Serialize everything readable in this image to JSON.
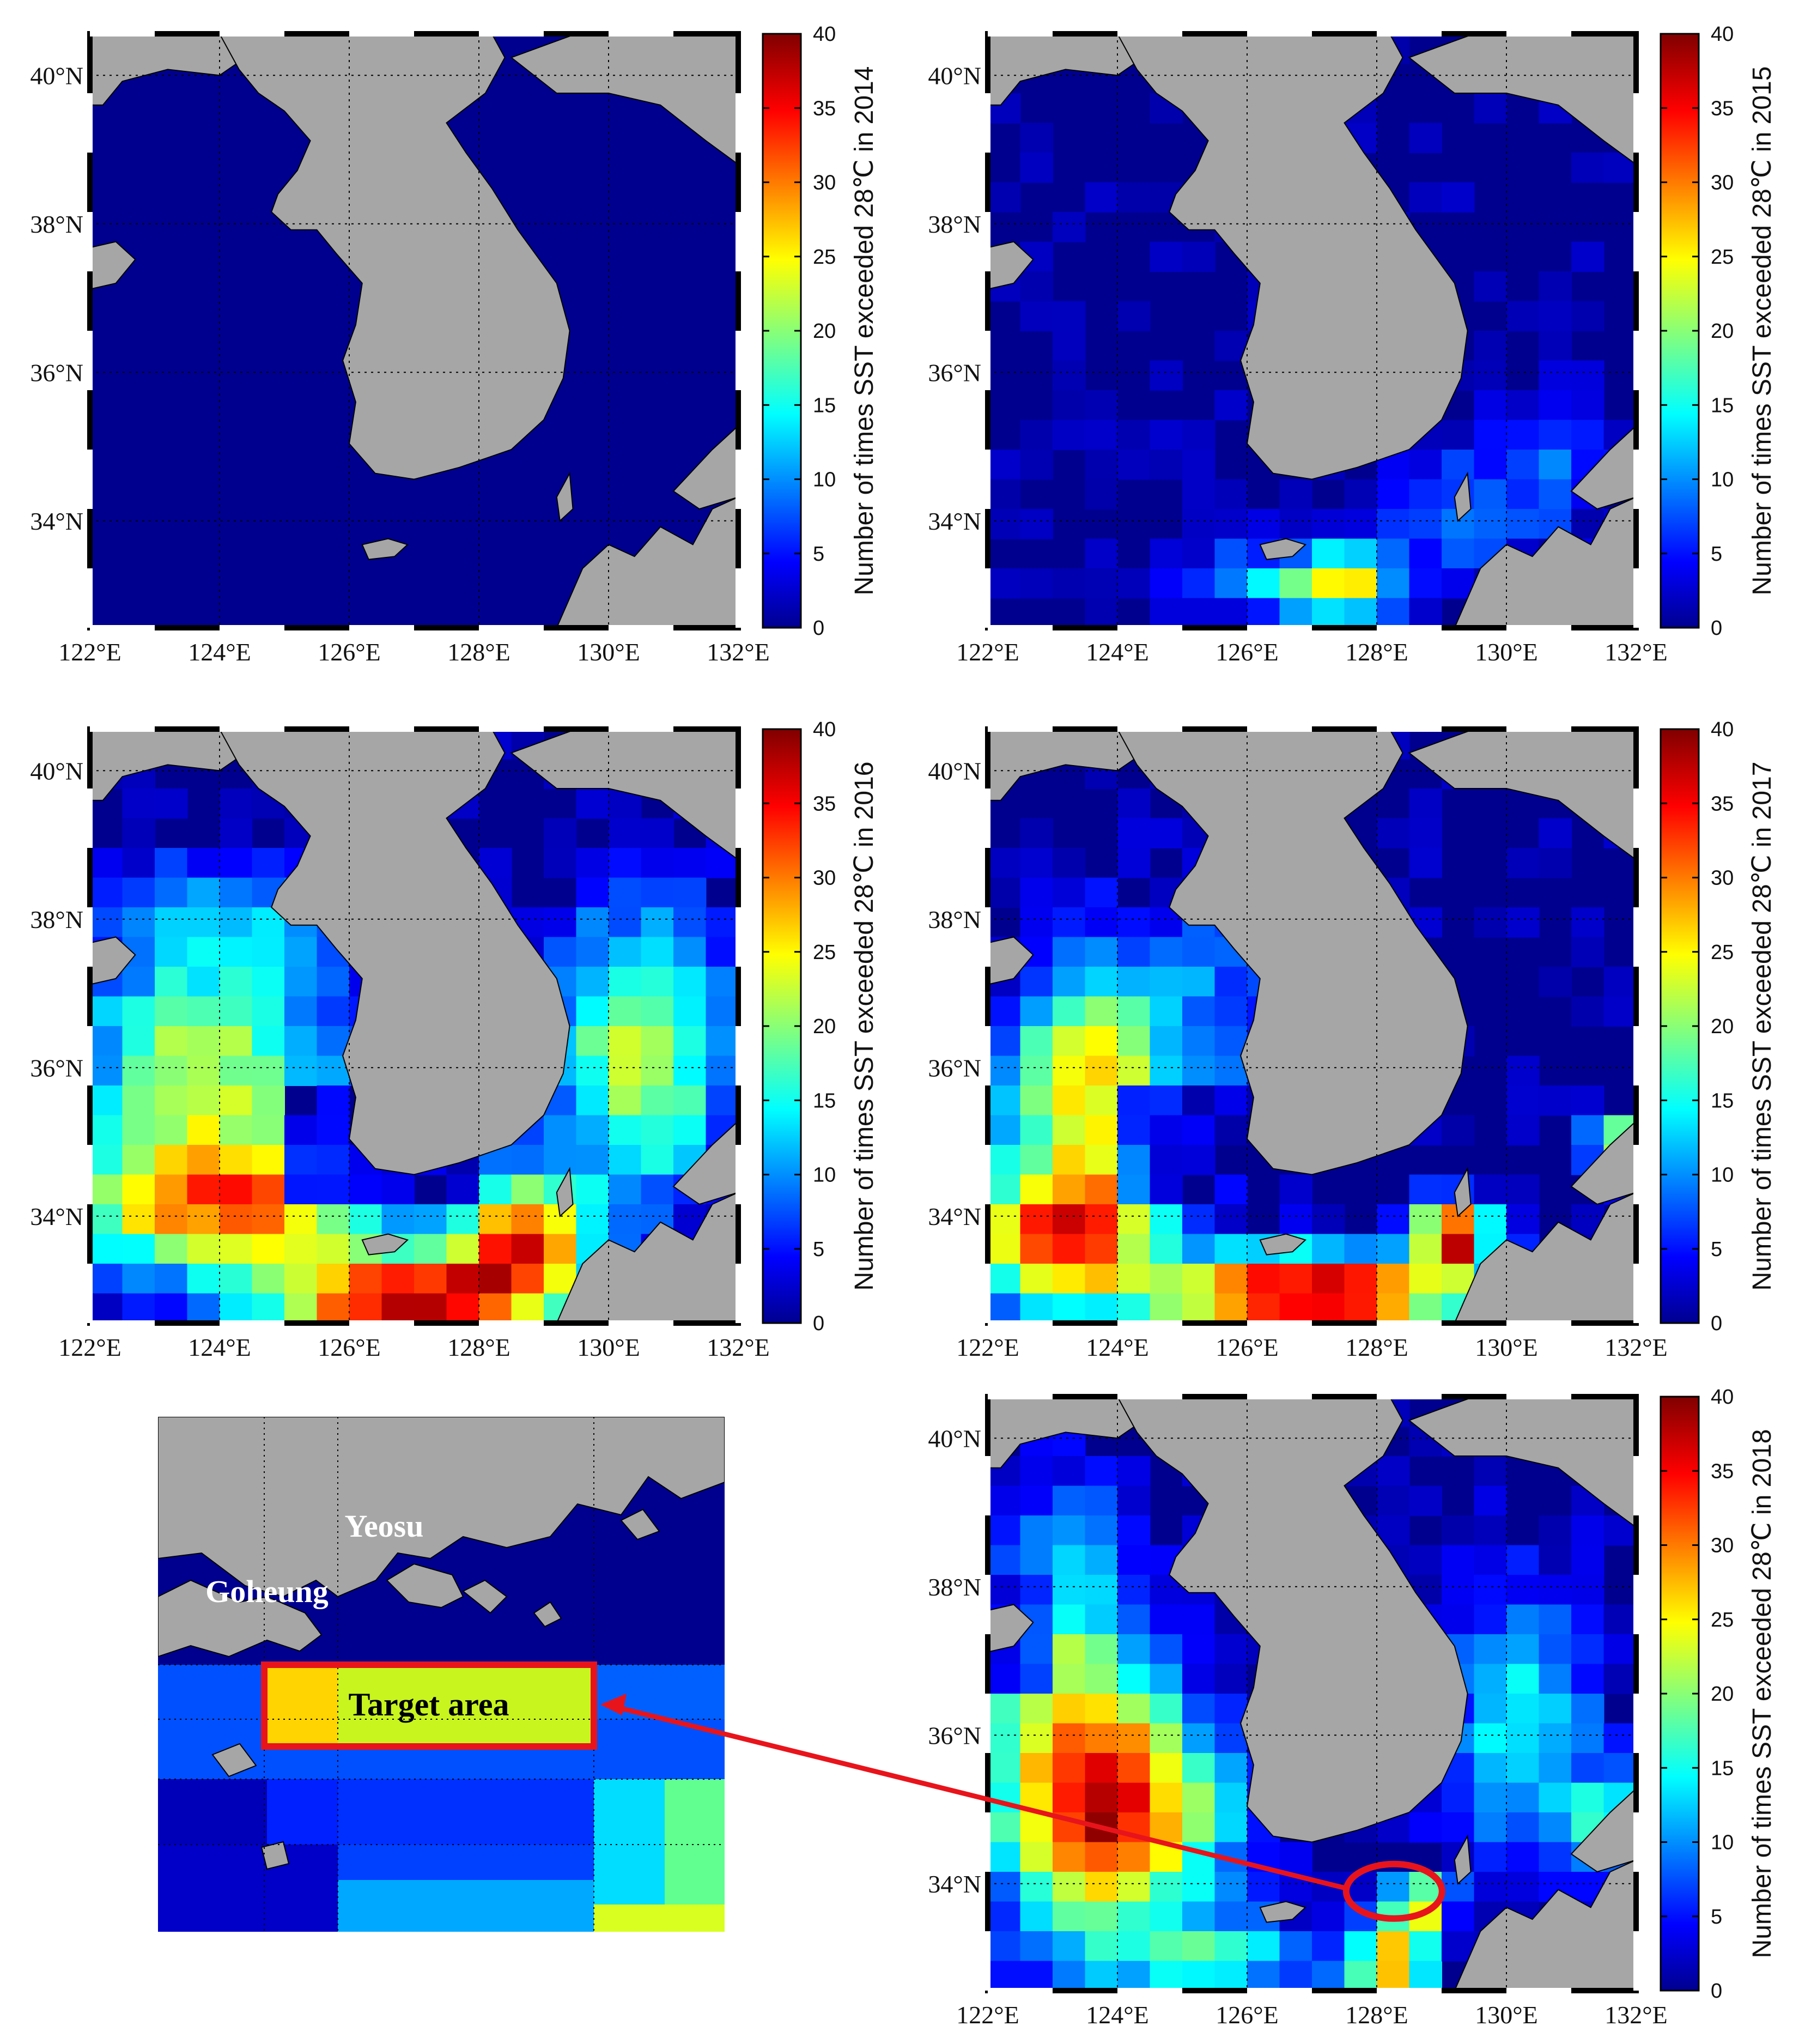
{
  "figure": {
    "panels": [
      {
        "id": "p2014",
        "year": "2014",
        "colorbar_title": "Number of times SST exceeded 28℃ in 2014",
        "lon_ticks": [
          "122°E",
          "124°E",
          "126°E",
          "128°E",
          "130°E",
          "132°E"
        ],
        "lat_ticks": [
          "40°N",
          "38°N",
          "36°N",
          "34°N"
        ]
      },
      {
        "id": "p2015",
        "year": "2015",
        "colorbar_title": "Number of times SST exceeded 28℃ in 2015",
        "lon_ticks": [
          "122°E",
          "124°E",
          "126°E",
          "128°E",
          "130°E",
          "132°E"
        ],
        "lat_ticks": [
          "40°N",
          "38°N",
          "36°N",
          "34°N"
        ]
      },
      {
        "id": "p2016",
        "year": "2016",
        "colorbar_title": "Number of times SST exceeded 28℃ in 2016",
        "lon_ticks": [
          "122°E",
          "124°E",
          "126°E",
          "128°E",
          "130°E",
          "132°E"
        ],
        "lat_ticks": [
          "40°N",
          "38°N",
          "36°N",
          "34°N"
        ]
      },
      {
        "id": "p2017",
        "year": "2017",
        "colorbar_title": "Number of times SST exceeded 28℃ in 2017",
        "lon_ticks": [
          "122°E",
          "124°E",
          "126°E",
          "128°E",
          "130°E",
          "132°E"
        ],
        "lat_ticks": [
          "40°N",
          "38°N",
          "36°N",
          "34°N"
        ]
      },
      {
        "id": "p2018",
        "year": "2018",
        "colorbar_title": "Number of times SST exceeded 28℃ in 2018",
        "lon_ticks": [
          "122°E",
          "124°E",
          "126°E",
          "128°E",
          "130°E",
          "132°E"
        ],
        "lat_ticks": [
          "40°N",
          "38°N",
          "36°N",
          "34°N"
        ]
      }
    ],
    "colorbar_ticks": [
      "0",
      "5",
      "10",
      "15",
      "20",
      "25",
      "30",
      "35",
      "40"
    ],
    "colorbar_range": [
      0,
      40
    ],
    "colormap": "jet",
    "inset": {
      "labels": {
        "yeosu": "Yeosu",
        "goheung": "Goheung",
        "target": "Target area"
      }
    },
    "colors": {
      "land": "#a6a6a6",
      "low": "#00008f",
      "highlight": "#e8141b"
    }
  }
}
